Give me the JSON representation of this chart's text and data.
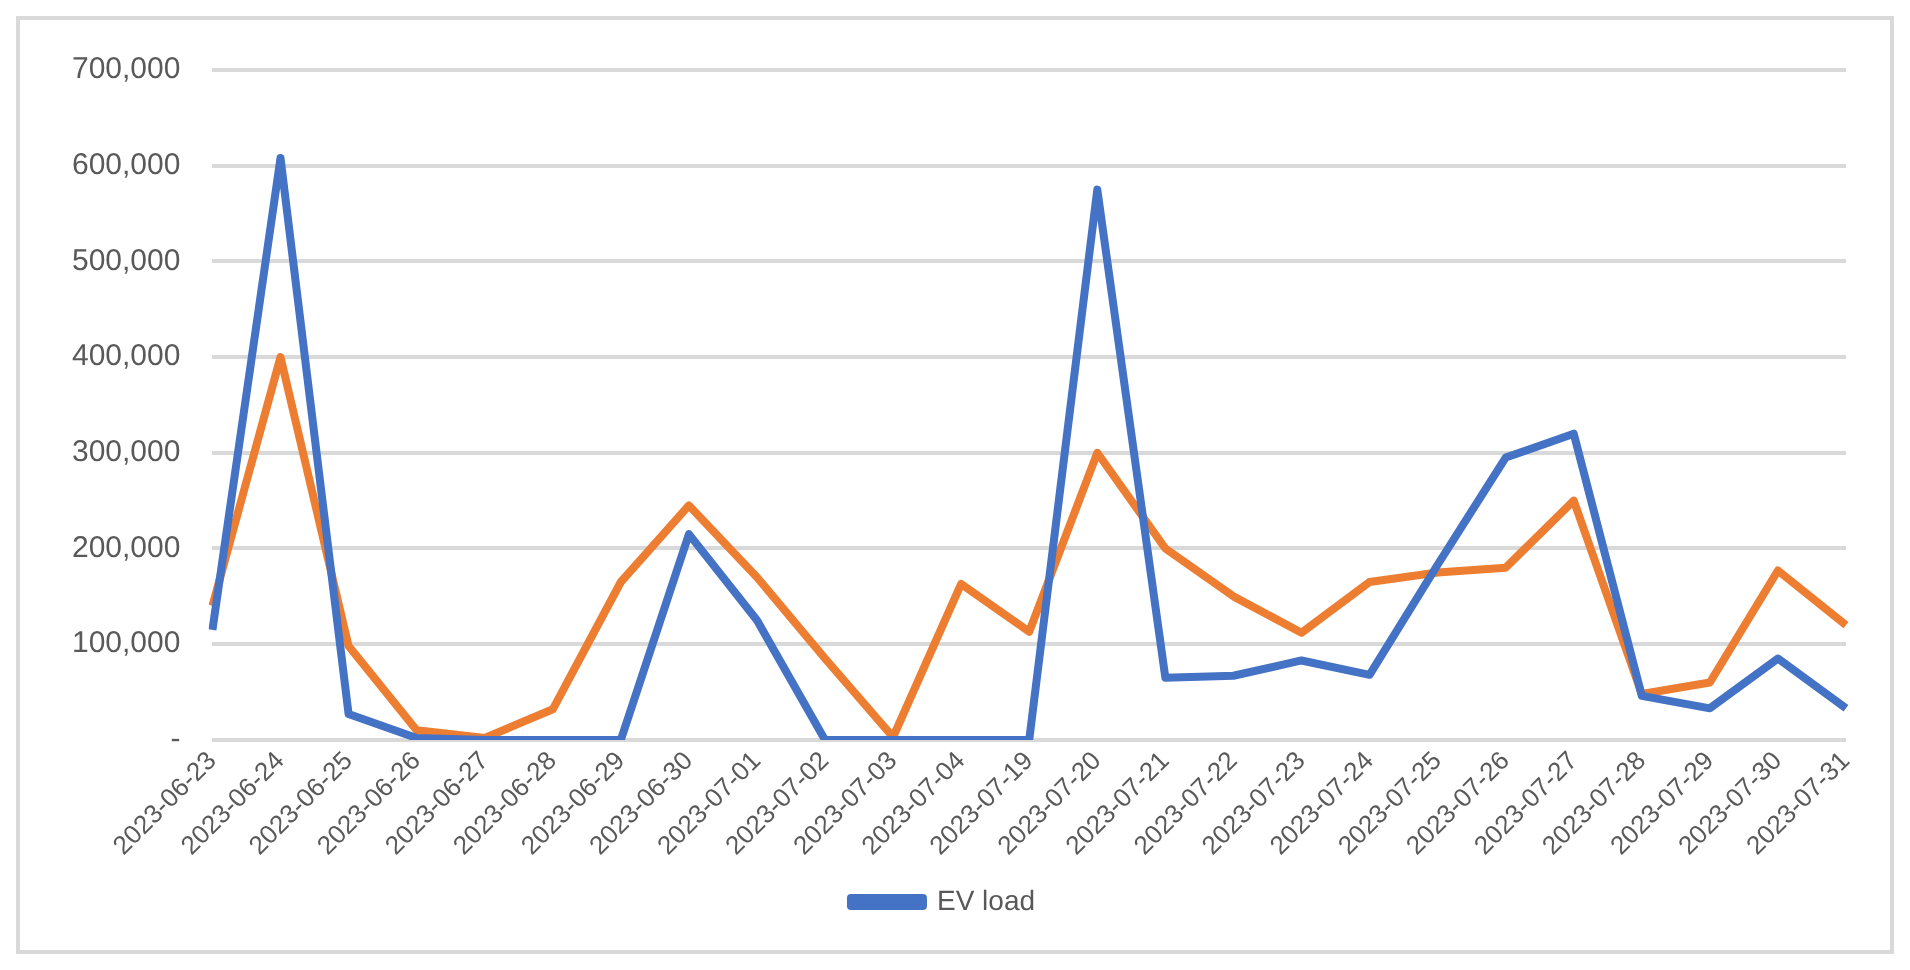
{
  "chart_data": {
    "type": "line",
    "categories": [
      "2023-06-23",
      "2023-06-24",
      "2023-06-25",
      "2023-06-26",
      "2023-06-27",
      "2023-06-28",
      "2023-06-29",
      "2023-06-30",
      "2023-07-01",
      "2023-07-02",
      "2023-07-03",
      "2023-07-04",
      "2023-07-19",
      "2023-07-20",
      "2023-07-21",
      "2023-07-22",
      "2023-07-23",
      "2023-07-24",
      "2023-07-25",
      "2023-07-26",
      "2023-07-27",
      "2023-07-28",
      "2023-07-29",
      "2023-07-30",
      "2023-07-31"
    ],
    "series": [
      {
        "name": "EV load",
        "color": "#4472c4",
        "values": [
          115000,
          608000,
          27000,
          2000,
          0,
          0,
          0,
          215000,
          125000,
          0,
          0,
          0,
          0,
          575000,
          65000,
          67000,
          83000,
          68000,
          183000,
          295000,
          320000,
          46000,
          33000,
          85000,
          33000
        ]
      },
      {
        "color": "#ed7d31",
        "values": [
          140000,
          400000,
          98000,
          10000,
          2000,
          32000,
          165000,
          245000,
          170000,
          85000,
          3000,
          163000,
          113000,
          300000,
          200000,
          150000,
          112000,
          165000,
          175000,
          180000,
          250000,
          48000,
          60000,
          177000,
          120000
        ]
      }
    ],
    "ylim": [
      0,
      700000
    ],
    "yticks": [
      {
        "value": 0,
        "label": "-"
      },
      {
        "value": 100000,
        "label": "100,000"
      },
      {
        "value": 200000,
        "label": "200,000"
      },
      {
        "value": 300000,
        "label": "300,000"
      },
      {
        "value": 400000,
        "label": "400,000"
      },
      {
        "value": 500000,
        "label": "500,000"
      },
      {
        "value": 600000,
        "label": "600,000"
      },
      {
        "value": 700000,
        "label": "700,000"
      }
    ],
    "grid": "y",
    "legend": "bottom",
    "marker": "none",
    "line_style": "solid"
  }
}
